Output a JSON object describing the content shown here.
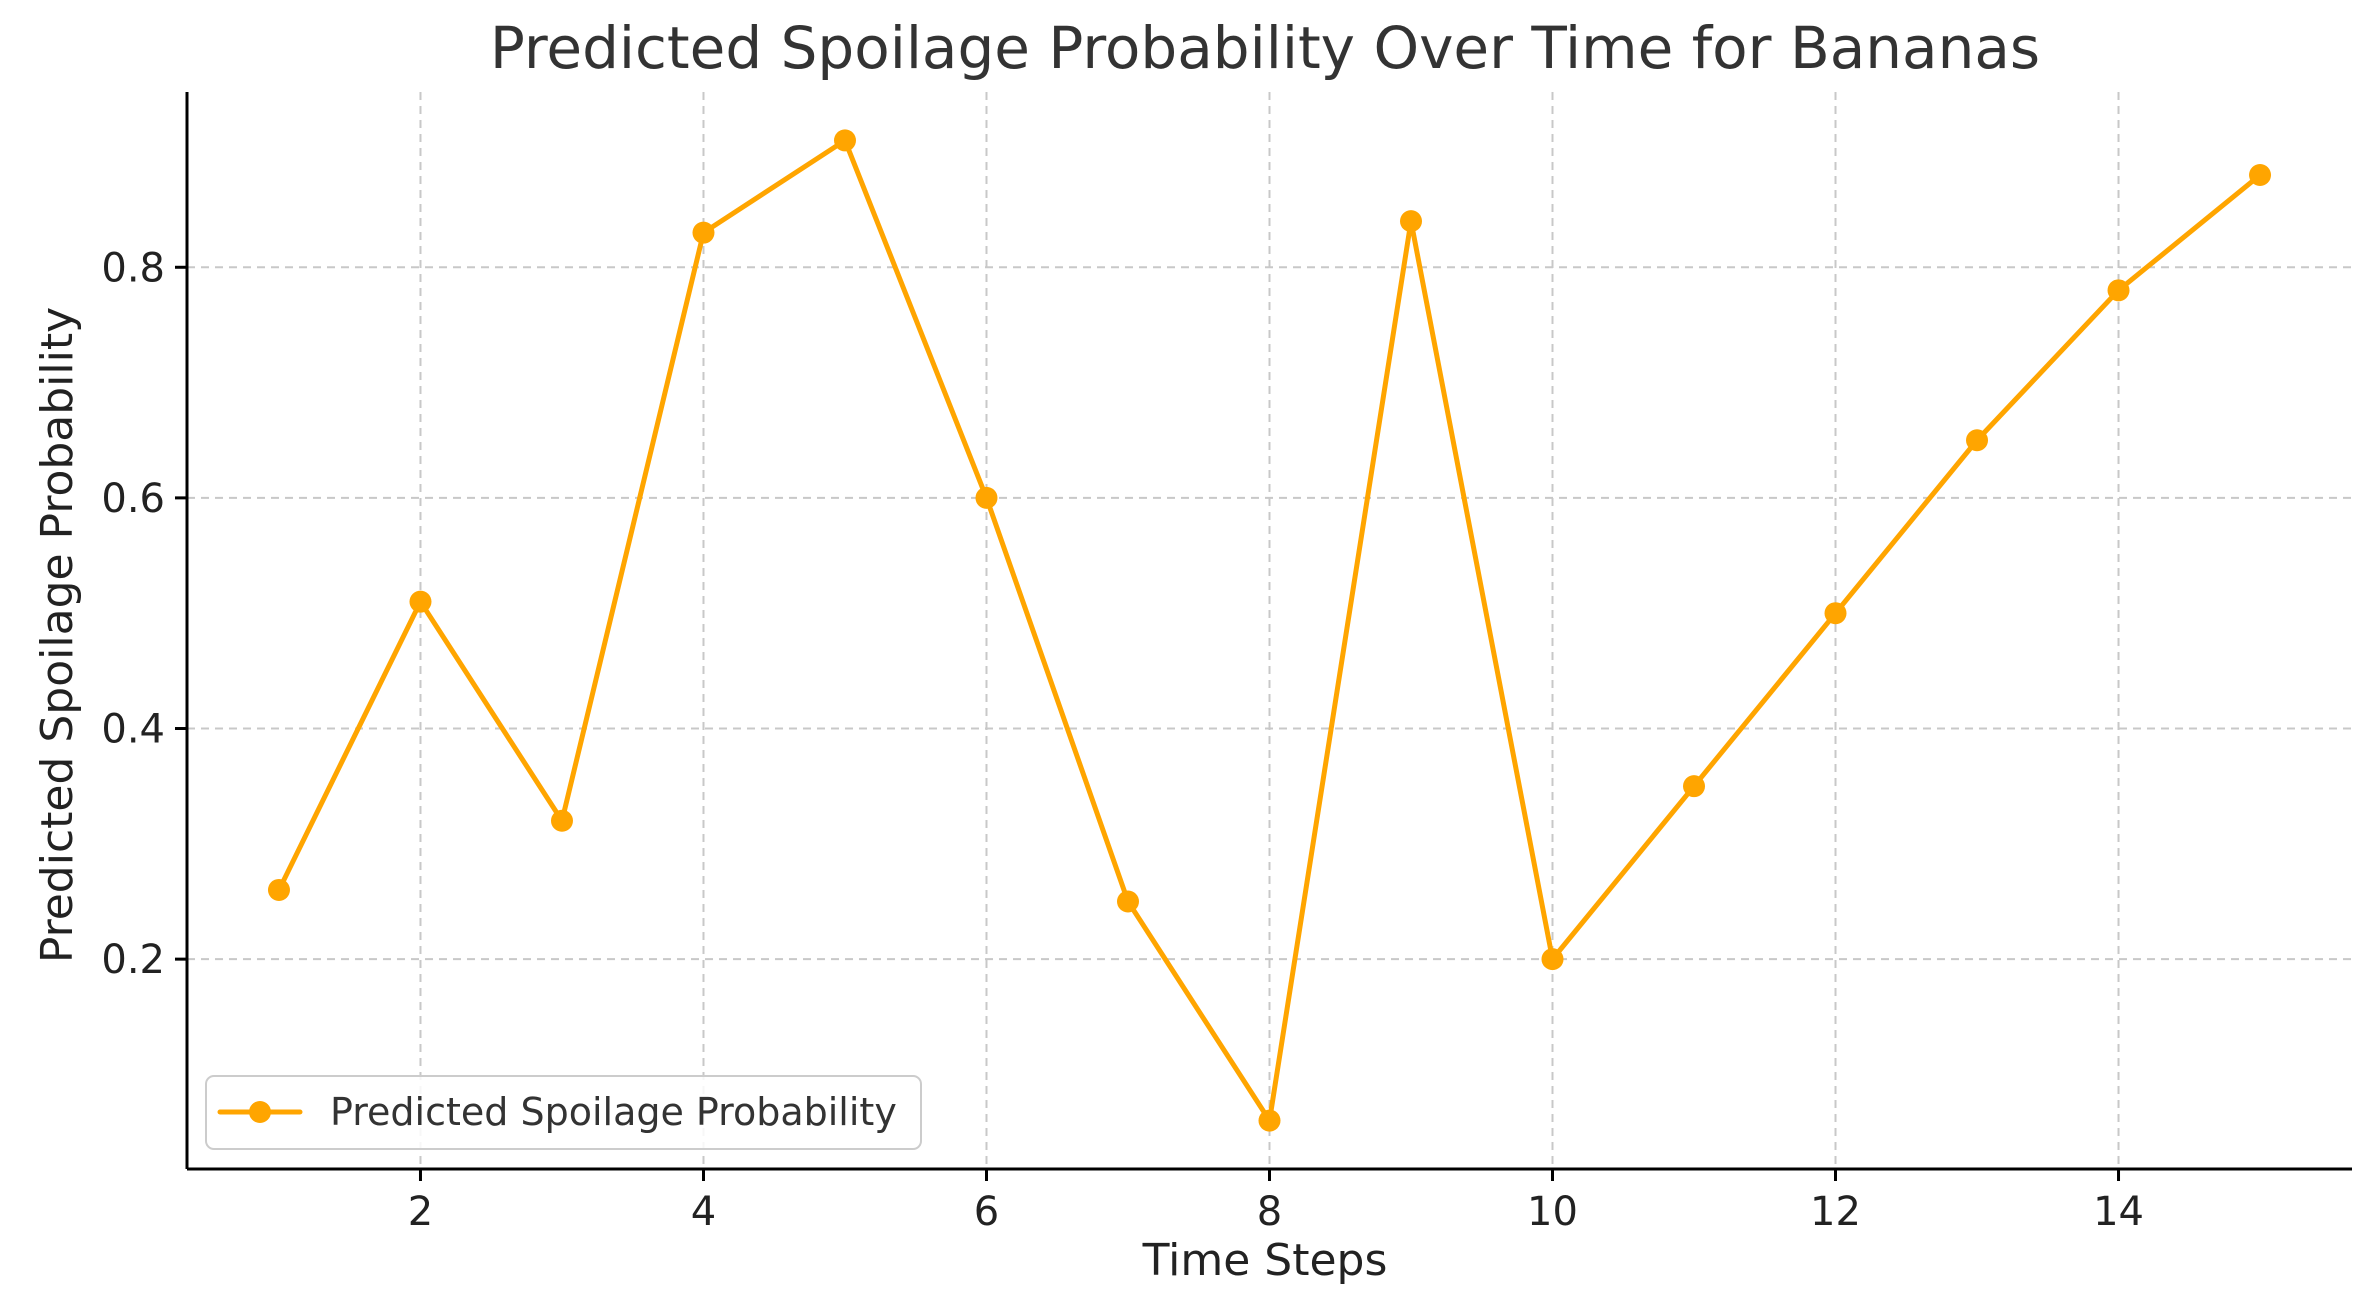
{
  "chart_data": {
    "type": "line",
    "title": "Predicted Spoilage Probability Over Time for Bananas",
    "xlabel": "Time Steps",
    "ylabel": "Predicted Spoilage Probability",
    "x": [
      1,
      2,
      3,
      4,
      5,
      6,
      7,
      8,
      9,
      10,
      11,
      12,
      13,
      14,
      15
    ],
    "series": [
      {
        "name": "Predicted Spoilage Probability",
        "values": [
          0.26,
          0.51,
          0.32,
          0.83,
          0.91,
          0.6,
          0.25,
          0.06,
          0.84,
          0.2,
          0.35,
          0.5,
          0.65,
          0.78,
          0.88
        ],
        "color": "#FFA500",
        "marker": "circle"
      }
    ],
    "xlim": [
      0.35,
      15.65
    ],
    "ylim": [
      0.018,
      0.952
    ],
    "xticks": [
      2,
      4,
      6,
      8,
      10,
      12,
      14
    ],
    "xtick_labels": [
      "2",
      "4",
      "6",
      "8",
      "10",
      "12",
      "14"
    ],
    "yticks": [
      0.2,
      0.4,
      0.6,
      0.8
    ],
    "ytick_labels": [
      "0.2",
      "0.4",
      "0.6",
      "0.8"
    ],
    "grid": true,
    "legend_position": "lower-left",
    "colors": {
      "grid": "#c8c8c8",
      "axis": "#000000"
    }
  }
}
